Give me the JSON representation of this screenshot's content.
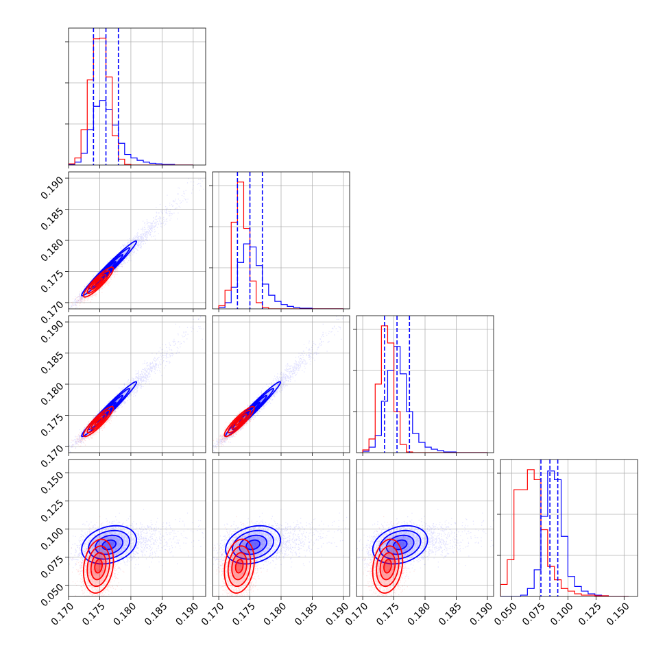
{
  "chart_data": {
    "type": "corner",
    "title": "",
    "colors": {
      "series_a": "#0000ff",
      "series_b": "#ff0000",
      "grid": "#b0b0b0"
    },
    "parameters": [
      {
        "range": [
          0.17,
          0.192
        ],
        "ticks": [
          0.17,
          0.175,
          0.18,
          0.185,
          0.19
        ],
        "tick_labels": [
          "0.170",
          "0.175",
          "0.180",
          "0.185",
          "0.190"
        ],
        "quantiles": [
          0.174,
          0.176,
          0.178
        ]
      },
      {
        "range": [
          0.169,
          0.191
        ],
        "ticks": [
          0.17,
          0.175,
          0.18,
          0.185,
          0.19
        ],
        "tick_labels": [
          "0.170",
          "0.175",
          "0.180",
          "0.185",
          "0.190"
        ],
        "quantiles": [
          0.173,
          0.175,
          0.177
        ]
      },
      {
        "range": [
          0.169,
          0.191
        ],
        "ticks": [
          0.17,
          0.175,
          0.18,
          0.185,
          0.19
        ],
        "tick_labels": [
          "0.170",
          "0.175",
          "0.180",
          "0.185",
          "0.190"
        ],
        "quantiles": [
          0.1735,
          0.1755,
          0.1775
        ]
      },
      {
        "range": [
          0.04,
          0.162
        ],
        "ticks": [
          0.05,
          0.075,
          0.1,
          0.125,
          0.15
        ],
        "tick_labels": [
          "0.050",
          "0.075",
          "0.100",
          "0.125",
          "0.150"
        ],
        "quantiles": [
          0.076,
          0.084,
          0.091
        ]
      }
    ],
    "series": [
      {
        "color": "#0000ff",
        "means": [
          0.1765,
          0.1755,
          0.176,
          0.086
        ],
        "sds": [
          0.0022,
          0.0022,
          0.0022,
          0.0085
        ],
        "corr": [
          [
            1,
            0.98,
            0.98,
            0.25
          ],
          [
            0.98,
            1,
            0.98,
            0.25
          ],
          [
            0.98,
            0.98,
            1,
            0.25
          ],
          [
            0.25,
            0.25,
            0.25,
            1
          ]
        ],
        "skew": 1
      },
      {
        "color": "#ff0000",
        "means": [
          0.1748,
          0.1733,
          0.174,
          0.067
        ],
        "sds": [
          0.0012,
          0.0012,
          0.0012,
          0.012
        ],
        "corr": [
          [
            1,
            0.9,
            0.9,
            0.2
          ],
          [
            0.9,
            1,
            0.9,
            0.2
          ],
          [
            0.9,
            0.9,
            1,
            0.2
          ],
          [
            0.2,
            0.2,
            0.2,
            1
          ]
        ],
        "skew": 0
      }
    ],
    "histograms": [
      {
        "edges": [
          0.17,
          0.171,
          0.172,
          0.173,
          0.174,
          0.175,
          0.176,
          0.177,
          0.178,
          0.179,
          0.18,
          0.181,
          0.182,
          0.183,
          0.184,
          0.185,
          0.186,
          0.187,
          0.188,
          0.189,
          0.19
        ],
        "series_a": [
          1,
          5,
          20,
          60,
          100,
          110,
          95,
          68,
          37,
          18,
          12,
          8,
          5,
          3,
          2,
          1,
          1,
          0,
          0,
          0
        ],
        "series_b": [
          2,
          12,
          60,
          145,
          215,
          216,
          150,
          50,
          10,
          1,
          0,
          0,
          0,
          0,
          0,
          0,
          0,
          0,
          0,
          0
        ]
      },
      {
        "edges": [
          0.17,
          0.171,
          0.172,
          0.173,
          0.174,
          0.175,
          0.176,
          0.177,
          0.178,
          0.179,
          0.18,
          0.181,
          0.182,
          0.183,
          0.184,
          0.185,
          0.186,
          0.187,
          0.188,
          0.189,
          0.19
        ],
        "series_a": [
          2,
          10,
          35,
          75,
          105,
          100,
          70,
          40,
          22,
          12,
          7,
          4,
          2,
          1,
          1,
          0,
          0,
          0,
          0,
          0
        ],
        "series_b": [
          5,
          30,
          140,
          205,
          130,
          45,
          10,
          2,
          0,
          0,
          0,
          0,
          0,
          0,
          0,
          0,
          0,
          0,
          0,
          0
        ]
      },
      {
        "edges": [
          0.17,
          0.171,
          0.172,
          0.173,
          0.174,
          0.175,
          0.176,
          0.177,
          0.178,
          0.179,
          0.18,
          0.181,
          0.182,
          0.183,
          0.184,
          0.185,
          0.186,
          0.187,
          0.188,
          0.189,
          0.19
        ],
        "series_a": [
          2,
          8,
          25,
          75,
          120,
          155,
          115,
          60,
          28,
          15,
          8,
          5,
          3,
          1,
          1,
          0,
          0,
          0,
          0,
          0
        ],
        "series_b": [
          4,
          20,
          100,
          185,
          160,
          60,
          12,
          1,
          0,
          0,
          0,
          0,
          0,
          0,
          0,
          0,
          0,
          0,
          0,
          0
        ]
      },
      {
        "edges": [
          0.04,
          0.046,
          0.052,
          0.058,
          0.064,
          0.07,
          0.076,
          0.082,
          0.088,
          0.094,
          0.1,
          0.106,
          0.112,
          0.118,
          0.124,
          0.13,
          0.136,
          0.142,
          0.148,
          0.154
        ],
        "series_a": [
          0,
          0,
          0,
          2,
          12,
          40,
          120,
          188,
          175,
          90,
          30,
          15,
          8,
          4,
          2,
          1,
          0,
          0,
          0
        ],
        "series_b": [
          18,
          55,
          160,
          160,
          190,
          175,
          100,
          45,
          25,
          12,
          8,
          4,
          2,
          2,
          1,
          1,
          0,
          0,
          0
        ]
      }
    ]
  }
}
